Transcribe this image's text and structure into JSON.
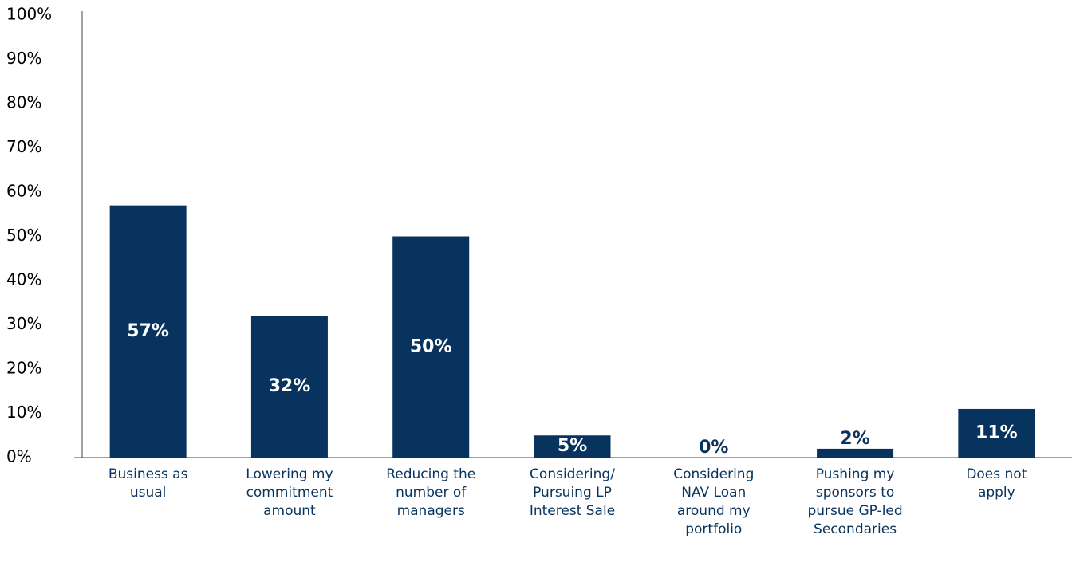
{
  "chart_data": {
    "type": "bar",
    "categories": [
      "Business as usual",
      "Lowering my commitment amount",
      "Reducing the number of managers",
      "Considering/ Pursuing LP Interest Sale",
      "Considering NAV Loan around my portfolio",
      "Pushing my sponsors to pursue GP-led Secondaries",
      "Does not apply"
    ],
    "values": [
      57,
      32,
      50,
      5,
      0,
      2,
      11
    ],
    "value_labels": [
      "57%",
      "32%",
      "50%",
      "5%",
      "0%",
      "2%",
      "11%"
    ],
    "color": "#08335e",
    "ylim": [
      0,
      100
    ],
    "yticks": [
      {
        "value": 0,
        "label": "0%"
      },
      {
        "value": 10,
        "label": "10%"
      },
      {
        "value": 20,
        "label": "20%"
      },
      {
        "value": 30,
        "label": "30%"
      },
      {
        "value": 40,
        "label": "40%"
      },
      {
        "value": 50,
        "label": "50%"
      },
      {
        "value": 60,
        "label": "60%"
      },
      {
        "value": 70,
        "label": "70%"
      },
      {
        "value": 80,
        "label": "80%"
      },
      {
        "value": 90,
        "label": "90%"
      },
      {
        "value": 100,
        "label": "100%"
      }
    ],
    "grid": false
  }
}
